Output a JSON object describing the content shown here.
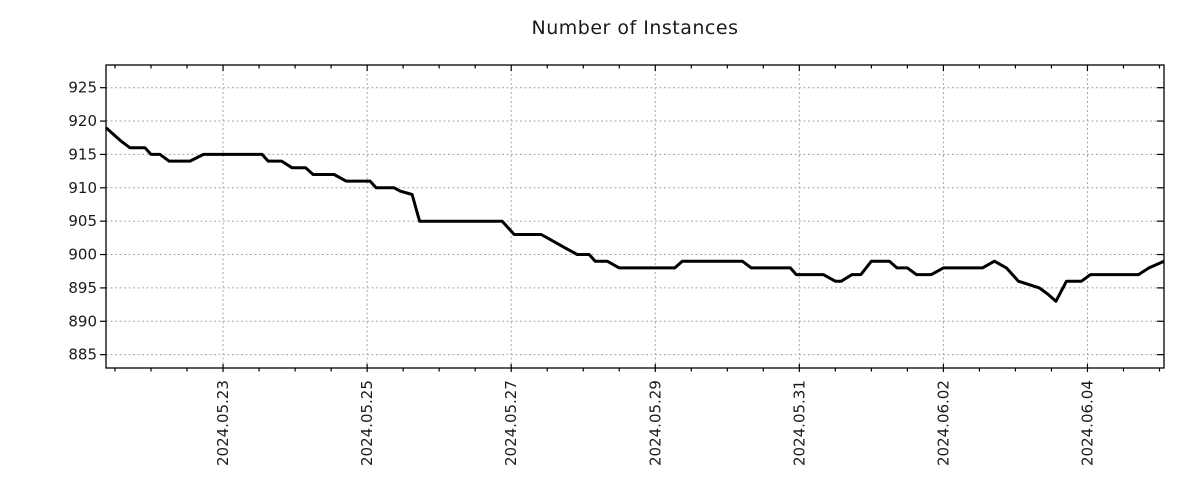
{
  "page": {
    "background": "#ffffff"
  },
  "style": {
    "line_color": "#000000",
    "grid_color": "#a6a6a6",
    "border_color": "#000000",
    "text_color": "#1a1a1a"
  },
  "chart_data": {
    "type": "line",
    "title": "Number of Instances",
    "xlabel": "",
    "ylabel": "",
    "grid": true,
    "legend": "none",
    "ylim": [
      883,
      928.4
    ],
    "y_ticks": [
      885,
      890,
      895,
      900,
      905,
      910,
      915,
      920,
      925
    ],
    "x_domain": [
      "2024-05-21 09:00",
      "2024-06-05 01:30"
    ],
    "x_minor_tick_hours": 12,
    "x_ticks": [
      {
        "label": "2024.05.23",
        "t": "2024-05-23 00:00"
      },
      {
        "label": "2024.05.25",
        "t": "2024-05-25 00:00"
      },
      {
        "label": "2024.05.27",
        "t": "2024-05-27 00:00"
      },
      {
        "label": "2024.05.29",
        "t": "2024-05-29 00:00"
      },
      {
        "label": "2024.05.31",
        "t": "2024-05-31 00:00"
      },
      {
        "label": "2024.06.02",
        "t": "2024-06-02 00:00"
      },
      {
        "label": "2024.06.04",
        "t": "2024-06-04 00:00"
      }
    ],
    "series": [
      {
        "name": "Number of Instances",
        "color": "#000000",
        "points": [
          [
            "2024-05-21 09:00",
            919
          ],
          [
            "2024-05-21 11:30",
            918
          ],
          [
            "2024-05-21 14:00",
            917
          ],
          [
            "2024-05-21 17:00",
            916
          ],
          [
            "2024-05-21 22:00",
            916
          ],
          [
            "2024-05-22 00:00",
            915
          ],
          [
            "2024-05-22 03:00",
            915
          ],
          [
            "2024-05-22 06:00",
            914
          ],
          [
            "2024-05-22 13:00",
            914
          ],
          [
            "2024-05-22 17:30",
            915
          ],
          [
            "2024-05-23 13:00",
            915
          ],
          [
            "2024-05-23 15:00",
            914
          ],
          [
            "2024-05-23 19:30",
            914
          ],
          [
            "2024-05-23 23:00",
            913
          ],
          [
            "2024-05-24 03:30",
            913
          ],
          [
            "2024-05-24 06:00",
            912
          ],
          [
            "2024-05-24 13:00",
            912
          ],
          [
            "2024-05-24 17:00",
            911
          ],
          [
            "2024-05-25 01:00",
            911
          ],
          [
            "2024-05-25 03:00",
            910
          ],
          [
            "2024-05-25 09:00",
            910
          ],
          [
            "2024-05-25 11:00",
            909.5
          ],
          [
            "2024-05-25 15:00",
            909
          ],
          [
            "2024-05-25 17:30",
            905
          ],
          [
            "2024-05-26 21:00",
            905
          ],
          [
            "2024-05-27 01:00",
            903
          ],
          [
            "2024-05-27 10:00",
            903
          ],
          [
            "2024-05-27 14:00",
            902
          ],
          [
            "2024-05-27 18:00",
            901
          ],
          [
            "2024-05-27 22:00",
            900
          ],
          [
            "2024-05-28 02:00",
            900
          ],
          [
            "2024-05-28 04:00",
            899
          ],
          [
            "2024-05-28 08:00",
            899
          ],
          [
            "2024-05-28 12:00",
            898
          ],
          [
            "2024-05-29 06:30",
            898
          ],
          [
            "2024-05-29 09:00",
            899
          ],
          [
            "2024-05-30 05:00",
            899
          ],
          [
            "2024-05-30 08:00",
            898
          ],
          [
            "2024-05-30 21:00",
            898
          ],
          [
            "2024-05-30 23:00",
            897
          ],
          [
            "2024-05-31 08:00",
            897
          ],
          [
            "2024-05-31 12:00",
            896
          ],
          [
            "2024-05-31 14:00",
            896
          ],
          [
            "2024-05-31 17:30",
            897
          ],
          [
            "2024-05-31 20:30",
            897
          ],
          [
            "2024-06-01 00:00",
            899
          ],
          [
            "2024-06-01 06:00",
            899
          ],
          [
            "2024-06-01 08:30",
            898
          ],
          [
            "2024-06-01 12:00",
            898
          ],
          [
            "2024-06-01 15:00",
            897
          ],
          [
            "2024-06-01 20:00",
            897
          ],
          [
            "2024-06-02 00:00",
            898
          ],
          [
            "2024-06-02 13:00",
            898
          ],
          [
            "2024-06-02 17:00",
            899
          ],
          [
            "2024-06-02 21:00",
            898
          ],
          [
            "2024-06-03 01:00",
            896
          ],
          [
            "2024-06-03 04:30",
            895.5
          ],
          [
            "2024-06-03 08:00",
            895
          ],
          [
            "2024-06-03 11:00",
            894
          ],
          [
            "2024-06-03 13:30",
            893
          ],
          [
            "2024-06-03 17:00",
            896
          ],
          [
            "2024-06-03 22:00",
            896
          ],
          [
            "2024-06-04 01:00",
            897
          ],
          [
            "2024-06-04 17:00",
            897
          ],
          [
            "2024-06-04 20:30",
            898
          ],
          [
            "2024-06-05 01:30",
            899
          ]
        ]
      }
    ]
  }
}
